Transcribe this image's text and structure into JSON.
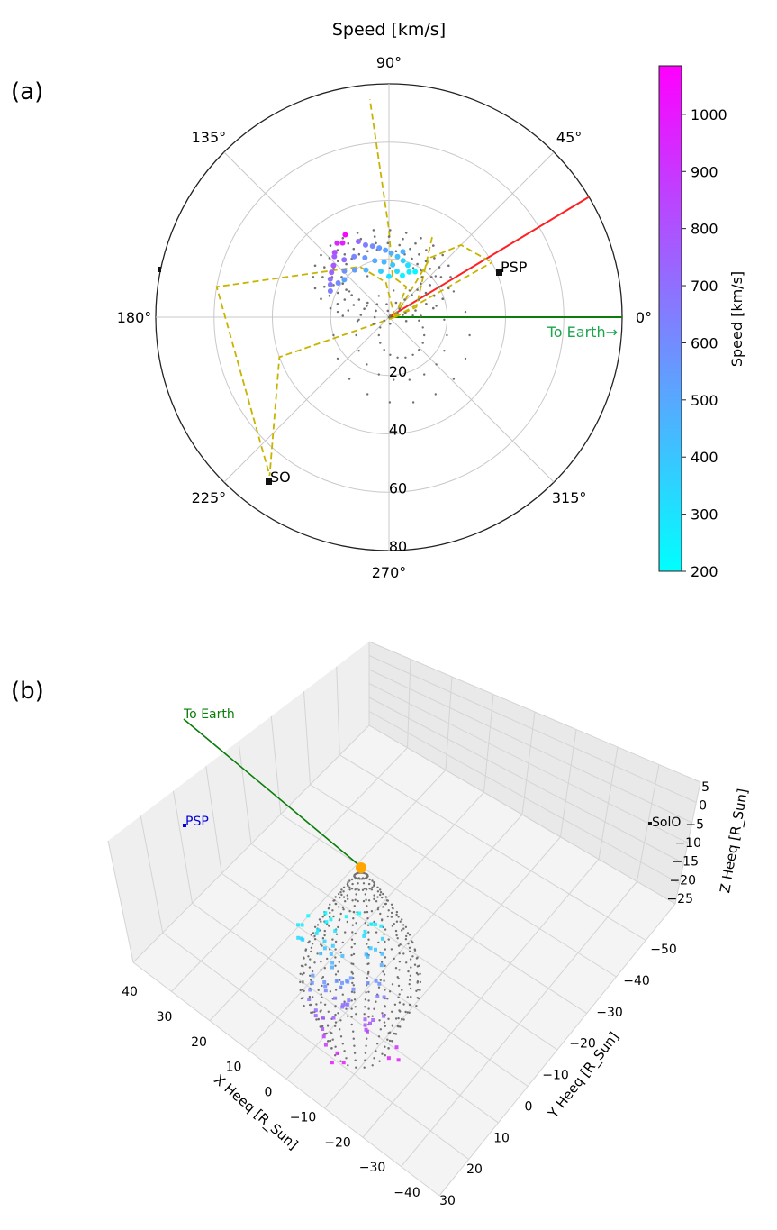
{
  "panel_labels": {
    "a": "(a)",
    "b": "(b)"
  },
  "colors": {
    "earth_line": "#0a7d0a",
    "earth_label": "#1aa64b",
    "sun_direction": "#ff2020",
    "fieldline": "#c8b400",
    "grey_points": "#707070",
    "sun_marker": "#ffa500",
    "psp_3d": "#0000dd",
    "cmap_low": "#00ffff",
    "cmap_high": "#ff00ff"
  },
  "chart_data": [
    {
      "type": "scatter",
      "projection": "polar",
      "title": "Speed [km/s]",
      "angle_tick_labels": [
        "0°",
        "45°",
        "90°",
        "135°",
        "180°",
        "225°",
        "270°",
        "315°"
      ],
      "angle_ticks_deg": [
        0,
        45,
        90,
        135,
        180,
        225,
        270,
        315
      ],
      "radial_ticks": [
        20,
        40,
        60,
        80
      ],
      "radial_tick_labels": [
        "20",
        "40",
        "60",
        "80"
      ],
      "rlim": [
        0,
        80
      ],
      "grid": true,
      "objects": [
        {
          "name": "PSP",
          "angle_deg": 28,
          "r": 40
        },
        {
          "name": "SO",
          "angle_deg": 233,
          "r": 68
        }
      ],
      "earth_direction": {
        "label": "To Earth→",
        "angle_deg": 0
      },
      "sun_direction_angle_deg": 31,
      "fieldlines": [
        [
          [
            2,
            0
          ],
          [
            12,
            60
          ],
          [
            14,
            85
          ],
          [
            30,
            90
          ],
          [
            75,
            95
          ]
        ],
        [
          [
            2,
            0
          ],
          [
            12,
            95
          ],
          [
            20,
            120
          ],
          [
            60,
            170
          ],
          [
            68,
            233
          ]
        ],
        [
          [
            2,
            0
          ],
          [
            25,
            55
          ],
          [
            35,
            45
          ],
          [
            40,
            28
          ]
        ],
        [
          [
            2,
            0
          ],
          [
            40,
            200
          ],
          [
            68,
            233
          ]
        ],
        [
          [
            2,
            0
          ],
          [
            10,
            20
          ],
          [
            32,
            62
          ]
        ],
        [
          [
            2,
            0
          ],
          [
            40,
            28
          ]
        ]
      ],
      "speed_points": [
        {
          "angle_deg": 118,
          "r": 32,
          "speed": 1060
        },
        {
          "angle_deg": 122,
          "r": 30,
          "speed": 980
        },
        {
          "angle_deg": 125,
          "r": 31,
          "speed": 950
        },
        {
          "angle_deg": 130,
          "r": 29,
          "speed": 820
        },
        {
          "angle_deg": 137,
          "r": 26,
          "speed": 780
        },
        {
          "angle_deg": 142,
          "r": 25,
          "speed": 740
        },
        {
          "angle_deg": 147,
          "r": 24,
          "speed": 700
        },
        {
          "angle_deg": 151,
          "r": 23,
          "speed": 660
        },
        {
          "angle_deg": 112,
          "r": 28,
          "speed": 720
        },
        {
          "angle_deg": 108,
          "r": 26,
          "speed": 640
        },
        {
          "angle_deg": 103,
          "r": 25,
          "speed": 600
        },
        {
          "angle_deg": 98,
          "r": 24,
          "speed": 560
        },
        {
          "angle_deg": 93,
          "r": 23,
          "speed": 520
        },
        {
          "angle_deg": 88,
          "r": 22,
          "speed": 480
        },
        {
          "angle_deg": 82,
          "r": 21,
          "speed": 420
        },
        {
          "angle_deg": 76,
          "r": 20,
          "speed": 360
        },
        {
          "angle_deg": 70,
          "r": 19,
          "speed": 300
        },
        {
          "angle_deg": 66,
          "r": 17,
          "speed": 260
        },
        {
          "angle_deg": 72,
          "r": 15,
          "speed": 240
        },
        {
          "angle_deg": 80,
          "r": 16,
          "speed": 330
        },
        {
          "angle_deg": 86,
          "r": 18,
          "speed": 400
        },
        {
          "angle_deg": 95,
          "r": 19,
          "speed": 450
        },
        {
          "angle_deg": 104,
          "r": 20,
          "speed": 500
        },
        {
          "angle_deg": 112,
          "r": 22,
          "speed": 560
        },
        {
          "angle_deg": 120,
          "r": 24,
          "speed": 620
        },
        {
          "angle_deg": 128,
          "r": 25,
          "speed": 700
        },
        {
          "angle_deg": 134,
          "r": 22,
          "speed": 580
        },
        {
          "angle_deg": 140,
          "r": 20,
          "speed": 520
        },
        {
          "angle_deg": 100,
          "r": 16,
          "speed": 380
        },
        {
          "angle_deg": 90,
          "r": 14,
          "speed": 300
        },
        {
          "angle_deg": 60,
          "r": 18,
          "speed": 220
        },
        {
          "angle_deg": 78,
          "r": 23,
          "speed": 470
        },
        {
          "angle_deg": 116,
          "r": 18,
          "speed": 460
        },
        {
          "angle_deg": 126,
          "r": 20,
          "speed": 540
        },
        {
          "angle_deg": 132,
          "r": 28,
          "speed": 760
        },
        {
          "angle_deg": 146,
          "r": 21,
          "speed": 600
        },
        {
          "angle_deg": 156,
          "r": 22,
          "speed": 640
        }
      ],
      "colorbar": {
        "label": "Speed [km/s]",
        "range": [
          200,
          1085
        ],
        "ticks": [
          200,
          300,
          400,
          500,
          600,
          700,
          800,
          900,
          1000
        ]
      }
    },
    {
      "type": "scatter",
      "projection": "3d",
      "xlabel": "X Heeq [R_Sun]",
      "ylabel": "Y Heeq [R_Sun]",
      "zlabel": "Z Heeq [R_Sun]",
      "x_ticks": [
        40,
        30,
        20,
        10,
        0,
        -10,
        -20,
        -30,
        -40
      ],
      "y_ticks": [
        -50,
        -40,
        -30,
        -20,
        -10,
        0,
        10,
        20,
        30
      ],
      "z_ticks": [
        5,
        0,
        -5,
        -10,
        -15,
        -20,
        -25
      ],
      "x_tick_labels": [
        "40",
        "30",
        "20",
        "10",
        "0",
        "−10",
        "−20",
        "−30",
        "−40"
      ],
      "y_tick_labels": [
        "−50",
        "−40",
        "−30",
        "−20",
        "−10",
        "0",
        "10",
        "20",
        "30"
      ],
      "z_tick_labels": [
        "5",
        "0",
        "−5",
        "−10",
        "−15",
        "−20",
        "−25"
      ],
      "objects": [
        {
          "name": "PSP"
        },
        {
          "name": "SolO"
        }
      ],
      "earth_label": "To Earth",
      "speed_scatter_count": 80
    }
  ]
}
